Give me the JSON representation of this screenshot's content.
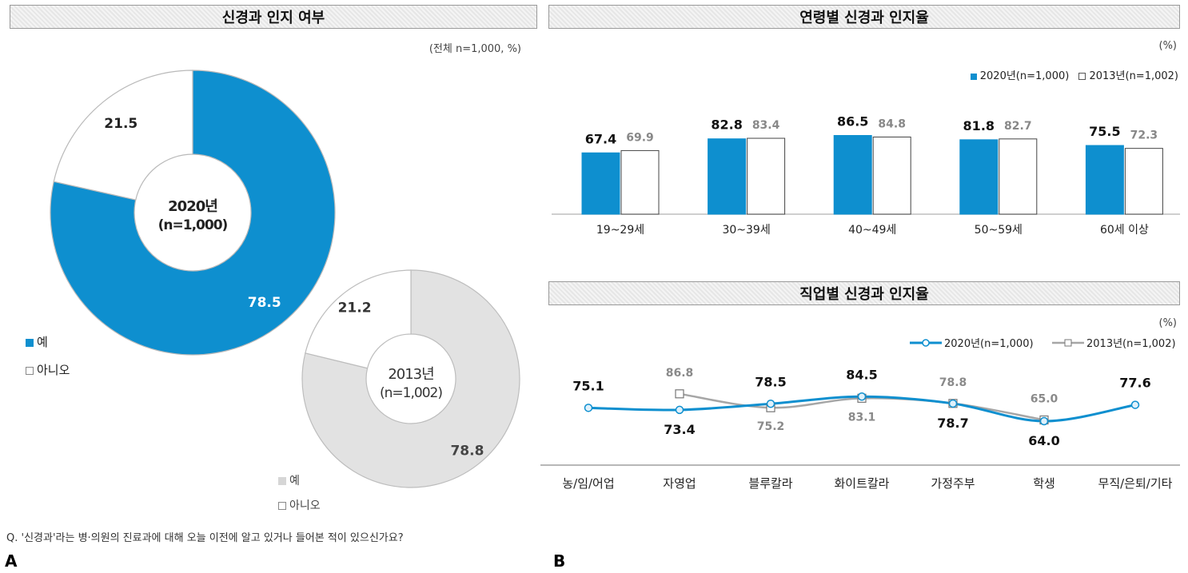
{
  "panelA": {
    "letter": "A",
    "title": "신경과 인지 여부",
    "note": "(전체 n=1,000, %)",
    "donut2020": {
      "center_line1": "2020년",
      "center_line2": "(n=1,000)"
    },
    "donut2013": {
      "center_line1": "2013년",
      "center_line2": "(n=1,002)"
    },
    "legend_2020": [
      "예",
      "아니오"
    ],
    "legend_2013": [
      "예",
      "아니오"
    ],
    "question": "Q. '신경과'라는 병·의원의 진료과에 대해 오늘 이전에 알고 있거나 들어본 적이 있으신가요?"
  },
  "panelB": {
    "letter": "B",
    "age_title": "연령별 신경과 인지율",
    "age_unit": "(%)",
    "job_title": "직업별 신경과 인지율",
    "job_unit": "(%)"
  },
  "colors": {
    "blue": "#0e8fcf",
    "gray_fill": "#e2e2e2",
    "gray_line": "#a6a6a6",
    "white": "#ffffff"
  },
  "chart_data": [
    {
      "type": "pie",
      "variant": "donut",
      "center_label": [
        "2020년",
        "(n=1,000)"
      ],
      "categories": [
        "예",
        "아니오"
      ],
      "values": [
        78.5,
        21.5
      ]
    },
    {
      "type": "pie",
      "variant": "donut",
      "center_label": [
        "2013년",
        "(n=1,002)"
      ],
      "categories": [
        "예",
        "아니오"
      ],
      "values": [
        78.8,
        21.2
      ]
    },
    {
      "type": "bar",
      "title": "연령별 신경과 인지율",
      "unit": "(%)",
      "categories": [
        "19~29세",
        "30~39세",
        "40~49세",
        "50~59세",
        "60세 이상"
      ],
      "series": [
        {
          "name": "2020년(n=1,000)",
          "values": [
            67.4,
            82.8,
            86.5,
            81.8,
            75.5
          ]
        },
        {
          "name": "2013년(n=1,002)",
          "values": [
            69.9,
            83.4,
            84.8,
            82.7,
            72.3
          ]
        }
      ],
      "ylim": [
        0,
        100
      ],
      "legend": "top-right",
      "grid": false
    },
    {
      "type": "line",
      "title": "직업별 신경과 인지율",
      "unit": "(%)",
      "categories": [
        "농/임/어업",
        "자영업",
        "블루칼라",
        "화이트칼라",
        "가정주부",
        "학생",
        "무직/은퇴/기타"
      ],
      "series": [
        {
          "name": "2020년(n=1,000)",
          "values": [
            75.1,
            73.4,
            78.5,
            84.5,
            78.7,
            64.0,
            77.6
          ]
        },
        {
          "name": "2013년(n=1,002)",
          "values": [
            null,
            86.8,
            75.2,
            83.1,
            78.8,
            65.0,
            null
          ]
        }
      ],
      "legend": "top-right",
      "grid": false
    }
  ]
}
